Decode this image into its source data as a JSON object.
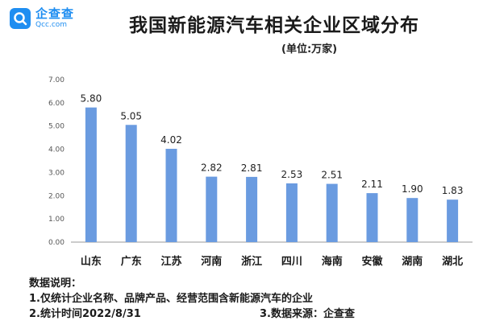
{
  "brand": {
    "name": "企查查",
    "domain": "Qcc.com",
    "accent": "#1f8ef1"
  },
  "title": "我国新能源汽车相关企业区域分布",
  "unit": "(单位:万家)",
  "chart_data": {
    "type": "bar",
    "categories": [
      "山东",
      "广东",
      "江苏",
      "河南",
      "浙江",
      "四川",
      "海南",
      "安徽",
      "湖南",
      "湖北"
    ],
    "values": [
      5.8,
      5.05,
      4.02,
      2.82,
      2.81,
      2.53,
      2.51,
      2.11,
      1.9,
      1.83
    ],
    "value_labels": [
      "5.80",
      "5.05",
      "4.02",
      "2.82",
      "2.81",
      "2.53",
      "2.51",
      "2.11",
      "1.90",
      "1.83"
    ],
    "yticks": [
      "0.00",
      "1.00",
      "2.00",
      "3.00",
      "4.00",
      "5.00",
      "6.00",
      "7.00"
    ],
    "ylim": [
      0,
      7
    ],
    "grid": false,
    "bar_color": "#6a9be0"
  },
  "notes": {
    "heading": "数据说明：",
    "line1": "1.仅统计企业名称、品牌产品、经营范围含新能源汽车的企业",
    "line2": "2.统计时间2022/8/31",
    "line3": "3.数据来源：企查查"
  }
}
